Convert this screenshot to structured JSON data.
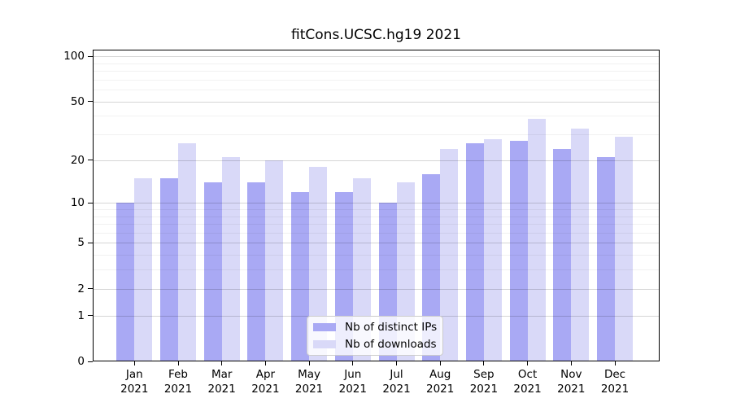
{
  "chart_data": {
    "type": "bar",
    "title": "fitCons.UCSC.hg19 2021",
    "categories": [
      "Jan 2021",
      "Feb 2021",
      "Mar 2021",
      "Apr 2021",
      "May 2021",
      "Jun 2021",
      "Jul 2021",
      "Aug 2021",
      "Sep 2021",
      "Oct 2021",
      "Nov 2021",
      "Dec 2021"
    ],
    "series": [
      {
        "name": "Nb of distinct IPs",
        "color": "#a9a9f4",
        "values": [
          10,
          15,
          14,
          14,
          12,
          12,
          10,
          16,
          26,
          27,
          24,
          21
        ]
      },
      {
        "name": "Nb of downloads",
        "color": "#d9d9f8",
        "values": [
          15,
          26,
          21,
          20,
          18,
          15,
          14,
          24,
          28,
          38,
          33,
          29
        ]
      }
    ],
    "y_axis": {
      "scale": "log1p",
      "ticks": [
        0,
        1,
        2,
        5,
        10,
        20,
        50,
        100
      ],
      "minor_gridlines": [
        3,
        4,
        6,
        7,
        8,
        9,
        30,
        40,
        60,
        70,
        80,
        90
      ],
      "range": [
        0,
        110
      ]
    },
    "x_axis": {
      "tick_year_line": "2021"
    },
    "legend": {
      "position": "lower center"
    },
    "grid": true,
    "colors": {
      "major_grid": "rgba(0,0,0,0.16)",
      "minor_grid": "rgba(0,0,0,0.055)",
      "axis": "#000000"
    }
  }
}
